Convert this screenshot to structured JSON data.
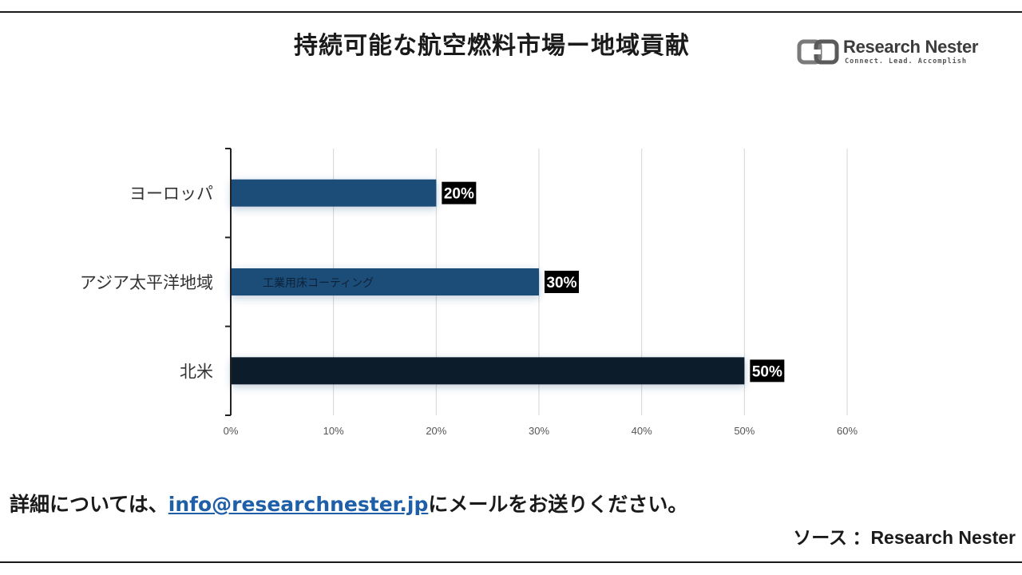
{
  "title": "持続可能な航空燃料市場ー地域貢献",
  "logo": {
    "name": "Research Nester",
    "tagline": "Connect. Lead. Accomplish",
    "icon": "research-nester-logo-icon"
  },
  "watermark": "工業用床コーティング",
  "chart_data": {
    "type": "bar",
    "orientation": "horizontal",
    "title": "",
    "xlabel": "",
    "ylabel": "",
    "categories": [
      "ヨーロッパ",
      "アジア太平洋地域",
      "北米"
    ],
    "values": [
      20,
      30,
      50
    ],
    "data_labels": [
      "20%",
      "30%",
      "50%"
    ],
    "bar_colors": [
      "#1f4e79",
      "#1f4e79",
      "#0e1d2c"
    ],
    "xlim": [
      0,
      60
    ],
    "x_ticks": [
      "0%",
      "10%",
      "20%",
      "30%",
      "40%",
      "50%",
      "60%"
    ],
    "grid": true,
    "legend": "none"
  },
  "footer": {
    "prefix": "詳細については、",
    "email": "info@researchnester.jp",
    "suffix": "にメールをお送りください。"
  },
  "source": "ソース ：Research Nester",
  "colors": {
    "bar_primary": "#1f4e79",
    "bar_dark": "#0e1d2c",
    "label_bg": "#000000",
    "link": "#1f5fa8"
  }
}
